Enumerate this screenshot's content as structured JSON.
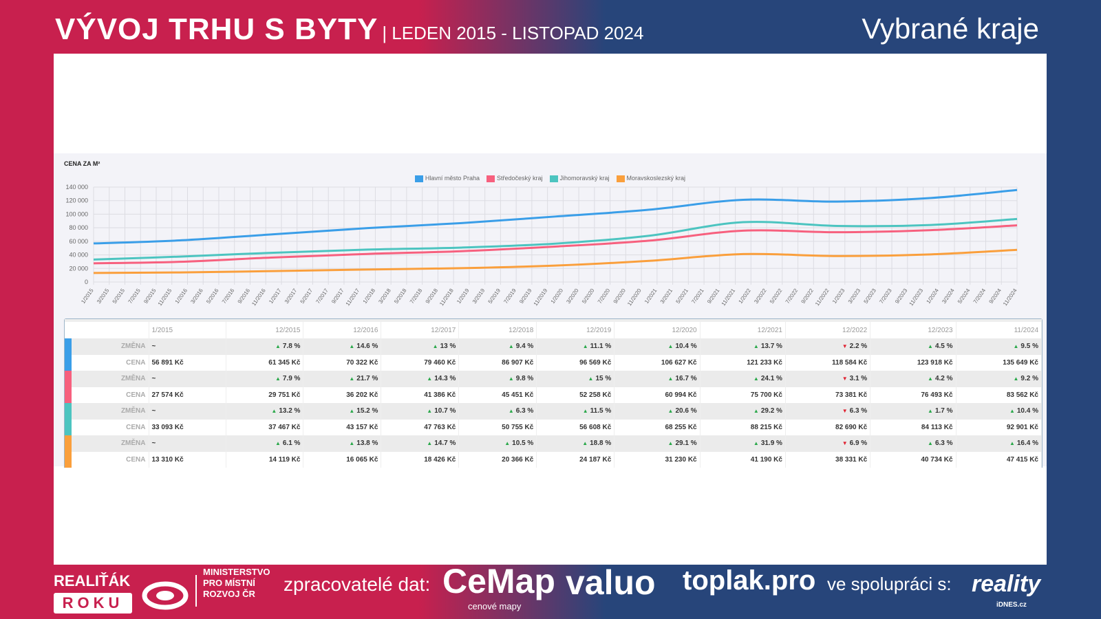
{
  "header": {
    "title": "VÝVOJ TRHU S BYTY",
    "subtitle": "| LEDEN 2015 - LISTOPAD 2024",
    "region": "Vybrané kraje"
  },
  "chart_data": {
    "type": "line",
    "title": "CENA ZA M²",
    "xlabel": "",
    "ylabel": "",
    "ylim": [
      0,
      140000
    ],
    "yticks": [
      "0",
      "20 000",
      "40 000",
      "60 000",
      "80 000",
      "100 000",
      "120 000",
      "140 000"
    ],
    "xticks": [
      "1/2015",
      "3/2015",
      "5/2015",
      "7/2015",
      "9/2015",
      "11/2015",
      "1/2016",
      "3/2016",
      "5/2016",
      "7/2016",
      "9/2016",
      "11/2016",
      "1/2017",
      "3/2017",
      "5/2017",
      "7/2017",
      "9/2017",
      "11/2017",
      "1/2018",
      "3/2018",
      "5/2018",
      "7/2018",
      "9/2018",
      "11/2018",
      "1/2019",
      "3/2019",
      "5/2019",
      "7/2019",
      "9/2019",
      "11/2019",
      "1/2020",
      "3/2020",
      "5/2020",
      "7/2020",
      "9/2020",
      "11/2020",
      "1/2021",
      "3/2021",
      "5/2021",
      "7/2021",
      "9/2021",
      "11/2021",
      "1/2022",
      "3/2022",
      "5/2022",
      "7/2022",
      "9/2022",
      "11/2022",
      "1/2023",
      "3/2023",
      "5/2023",
      "7/2023",
      "9/2023",
      "11/2023",
      "1/2024",
      "3/2024",
      "5/2024",
      "7/2024",
      "9/2024",
      "11/2024"
    ],
    "x_month_index": [
      0,
      11,
      23,
      35,
      47,
      59,
      71,
      83,
      95,
      107,
      118
    ],
    "legend_position": "top-center",
    "grid": true,
    "series": [
      {
        "name": "Hlavní město Praha",
        "color": "#3a9ee8",
        "values": [
          56891,
          61345,
          70322,
          79460,
          86907,
          96569,
          106627,
          121233,
          118584,
          123918,
          135649
        ]
      },
      {
        "name": "Středočeský kraj",
        "color": "#f7607e",
        "values": [
          27574,
          29751,
          36202,
          41386,
          45451,
          52258,
          60994,
          75700,
          73381,
          76493,
          83562
        ]
      },
      {
        "name": "Jihomoravský kraj",
        "color": "#4cc4c0",
        "values": [
          33093,
          37467,
          43157,
          47763,
          50755,
          56608,
          68255,
          88215,
          82690,
          84113,
          92901
        ]
      },
      {
        "name": "Moravskoslezský kraj",
        "color": "#fa9f3c",
        "values": [
          13310,
          14119,
          16065,
          18426,
          20366,
          24187,
          31230,
          41190,
          38331,
          40734,
          47415
        ]
      }
    ]
  },
  "table": {
    "columns": [
      "1/2015",
      "12/2015",
      "12/2016",
      "12/2017",
      "12/2018",
      "12/2019",
      "12/2020",
      "12/2021",
      "12/2022",
      "12/2023",
      "11/2024"
    ],
    "change_label": "ZMĚNA",
    "price_label": "CENA",
    "rows": [
      {
        "color": "#3a9ee8",
        "change": [
          "~",
          "7.8 %",
          "14.6 %",
          "13 %",
          "9.4 %",
          "11.1 %",
          "10.4 %",
          "13.7 %",
          "2.2 %",
          "4.5 %",
          "9.5 %"
        ],
        "dir": [
          "",
          "up",
          "up",
          "up",
          "up",
          "up",
          "up",
          "up",
          "down",
          "up",
          "up"
        ],
        "price": [
          "56 891 Kč",
          "61 345 Kč",
          "70 322 Kč",
          "79 460 Kč",
          "86 907 Kč",
          "96 569 Kč",
          "106 627 Kč",
          "121 233 Kč",
          "118 584 Kč",
          "123 918 Kč",
          "135 649 Kč"
        ]
      },
      {
        "color": "#f7607e",
        "change": [
          "~",
          "7.9 %",
          "21.7 %",
          "14.3 %",
          "9.8 %",
          "15 %",
          "16.7 %",
          "24.1 %",
          "3.1 %",
          "4.2 %",
          "9.2 %"
        ],
        "dir": [
          "",
          "up",
          "up",
          "up",
          "up",
          "up",
          "up",
          "up",
          "down",
          "up",
          "up"
        ],
        "price": [
          "27 574 Kč",
          "29 751 Kč",
          "36 202 Kč",
          "41 386 Kč",
          "45 451 Kč",
          "52 258 Kč",
          "60 994 Kč",
          "75 700 Kč",
          "73 381 Kč",
          "76 493 Kč",
          "83 562 Kč"
        ]
      },
      {
        "color": "#4cc4c0",
        "change": [
          "~",
          "13.2 %",
          "15.2 %",
          "10.7 %",
          "6.3 %",
          "11.5 %",
          "20.6 %",
          "29.2 %",
          "6.3 %",
          "1.7 %",
          "10.4 %"
        ],
        "dir": [
          "",
          "up",
          "up",
          "up",
          "up",
          "up",
          "up",
          "up",
          "down",
          "up",
          "up"
        ],
        "price": [
          "33 093 Kč",
          "37 467 Kč",
          "43 157 Kč",
          "47 763 Kč",
          "50 755 Kč",
          "56 608 Kč",
          "68 255 Kč",
          "88 215 Kč",
          "82 690 Kč",
          "84 113 Kč",
          "92 901 Kč"
        ]
      },
      {
        "color": "#fa9f3c",
        "change": [
          "~",
          "6.1 %",
          "13.8 %",
          "14.7 %",
          "10.5 %",
          "18.8 %",
          "29.1 %",
          "31.9 %",
          "6.9 %",
          "6.3 %",
          "16.4 %"
        ],
        "dir": [
          "",
          "up",
          "up",
          "up",
          "up",
          "up",
          "up",
          "up",
          "down",
          "up",
          "up"
        ],
        "price": [
          "13 310 Kč",
          "14 119 Kč",
          "16 065 Kč",
          "18 426 Kč",
          "20 366 Kč",
          "24 187 Kč",
          "31 230 Kč",
          "41 190 Kč",
          "38 331 Kč",
          "40 734 Kč",
          "47 415 Kč"
        ]
      }
    ]
  },
  "footer": {
    "realitak": "REALIŤÁK",
    "roku": "ROKU",
    "ministry": [
      "MINISTERSTVO",
      "PRO MÍSTNÍ",
      "ROZVOJ ČR"
    ],
    "processors": "zpracovatelé dat:",
    "cemap": "CeMap",
    "cemap_sub": "cenové mapy",
    "valuo": "valuo",
    "toplak": "toplak.pro",
    "coop": "ve spolupráci s:",
    "reality": "reality",
    "idnes": "iDNES.cz"
  }
}
